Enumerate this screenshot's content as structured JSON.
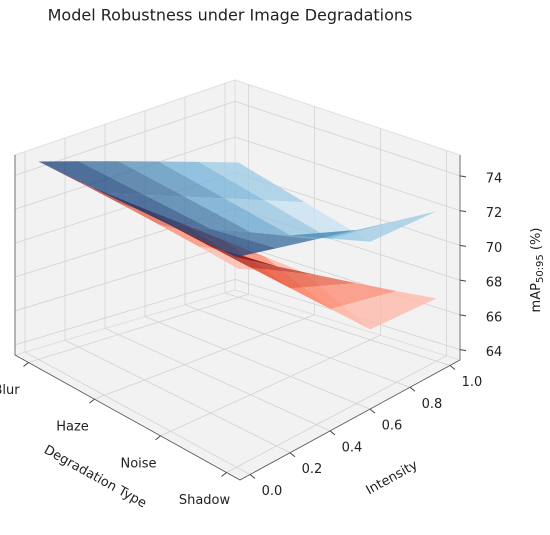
{
  "chart_data": {
    "type": "surface3d",
    "title": "Model Robustness under Image Degradations",
    "xlabel": "Degradation Type",
    "ylabel": "Intensity",
    "zlabel": {
      "main": "mAP",
      "sub": "50:95",
      "unit": " (%)"
    },
    "categories": [
      "Blur",
      "Haze",
      "Noise",
      "Shadow"
    ],
    "x": [
      0,
      0.2,
      0.4,
      0.6,
      0.8,
      1.0
    ],
    "xlim": [
      -0.05,
      1.05
    ],
    "xticks": [
      {
        "value": 0,
        "label": "0.0"
      },
      0.2,
      0.4,
      0.6,
      0.8,
      {
        "value": 1,
        "label": "1.0"
      }
    ],
    "zlim": [
      63.4,
      75.2
    ],
    "zticks": [
      64,
      66,
      68,
      70,
      72,
      74
    ],
    "grid": true,
    "series": [
      {
        "cmap": [
          "#fff5f0",
          "#fb6a4a",
          "#67000d"
        ],
        "alpha": 0.75,
        "values": [
          [
            75,
            73,
            71,
            69,
            67,
            65
          ],
          [
            75,
            73.2,
            71.4,
            69.6,
            67.8,
            66
          ],
          [
            75,
            72.8,
            70.6,
            68.4,
            66.2,
            64
          ],
          [
            75,
            73.4,
            71.8,
            70.2,
            68.6,
            67
          ]
        ]
      },
      {
        "cmap": [
          "#f7fbff",
          "#6baed6",
          "#08306b"
        ],
        "alpha": 0.75,
        "values": [
          [
            75,
            74.2,
            73.4,
            72.6,
            71.8,
            71
          ],
          [
            75,
            74,
            73,
            72,
            71,
            70
          ],
          [
            75,
            73.8,
            72.6,
            71.4,
            70.2,
            69
          ],
          [
            75,
            74.4,
            73.8,
            73.2,
            72.6,
            72
          ]
        ]
      }
    ]
  }
}
